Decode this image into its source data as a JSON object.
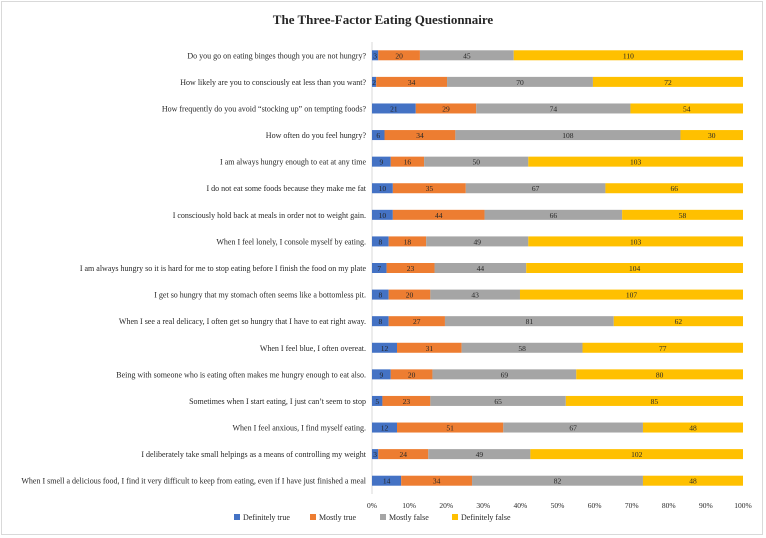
{
  "chart_data": {
    "type": "bar",
    "stacking": "percent",
    "orientation": "horizontal",
    "title": "The Three-Factor Eating Questionnaire",
    "xlabel": "",
    "ylabel": "",
    "xlim": [
      0,
      100
    ],
    "x_ticks": [
      "0%",
      "10%",
      "20%",
      "30%",
      "40%",
      "50%",
      "60%",
      "70%",
      "80%",
      "90%",
      "100%"
    ],
    "grid": false,
    "legend_position": "bottom",
    "categories": [
      "Do you go on eating binges though you are not hungry?",
      "How likely are you to consciously eat less than you want?",
      "How frequently do you avoid “stocking up” on tempting foods?",
      "How often do you feel hungry?",
      "I am always hungry enough to eat at any time",
      "I do not eat some foods because they make me fat",
      "I consciously hold back at meals in order not to weight gain.",
      "When I feel lonely, I console myself by eating.",
      "I am always hungry so it is hard for me to stop eating before I finish the food on my plate",
      "I get so hungry that my stomach often seems like a bottomless pit.",
      "When I see a real delicacy, I often get so hungry that I have to eat right away.",
      "When I feel blue, I often overeat.",
      "Being with someone who is eating often makes me hungry enough to eat also.",
      "Sometimes when I start eating, I just can’t seem to stop",
      "When I feel anxious, I find myself eating.",
      "I deliberately take small helpings as a means of controlling my weight",
      "When I smell a delicious food, I find it very difficult to keep from eating, even if I have just finished a meal"
    ],
    "series": [
      {
        "name": "Definitely true",
        "color": "#4472c4",
        "values": [
          3,
          2,
          21,
          6,
          9,
          10,
          10,
          8,
          7,
          8,
          8,
          12,
          9,
          5,
          12,
          3,
          14
        ]
      },
      {
        "name": "Mostly true",
        "color": "#ed7d31",
        "values": [
          20,
          34,
          29,
          34,
          16,
          35,
          44,
          18,
          23,
          20,
          27,
          31,
          20,
          23,
          51,
          24,
          34
        ]
      },
      {
        "name": "Mostly false",
        "color": "#a5a5a5",
        "values": [
          45,
          70,
          74,
          108,
          50,
          67,
          66,
          49,
          44,
          43,
          81,
          58,
          69,
          65,
          67,
          49,
          82
        ]
      },
      {
        "name": "Definitely false",
        "color": "#ffc000",
        "values": [
          110,
          72,
          54,
          30,
          103,
          66,
          58,
          103,
          104,
          107,
          62,
          77,
          80,
          85,
          48,
          102,
          48
        ]
      }
    ]
  }
}
